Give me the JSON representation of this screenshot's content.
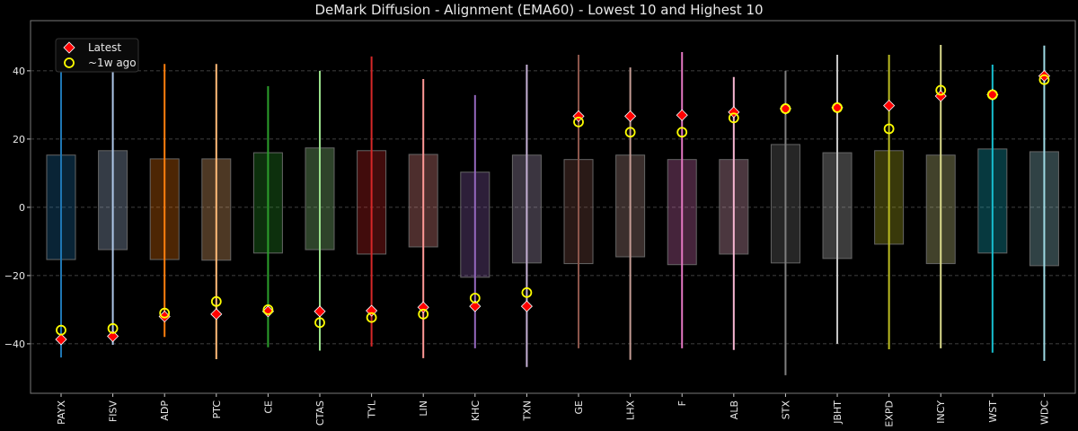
{
  "chart_data": {
    "type": "box-range",
    "title": "DeMark Diffusion - Alignment (EMA60) - Lowest 10 and Highest 10",
    "xlabel": "",
    "ylabel": "",
    "ylim": [
      -54.5,
      54.7
    ],
    "yticks": [
      -40,
      -20,
      0,
      20,
      40
    ],
    "grid": "horizontal dashed",
    "legend": {
      "placement": "top-left",
      "entries": [
        {
          "label": "Latest",
          "marker": "red-diamond",
          "color": "#ff0000"
        },
        {
          "label": "~1w ago",
          "marker": "yellow-open-circle",
          "color": "#ffff00"
        }
      ]
    },
    "categories": [
      "PAYX",
      "FISV",
      "ADP",
      "PTC",
      "CE",
      "CTAS",
      "TYL",
      "LIN",
      "KHC",
      "TXN",
      "GE",
      "LHX",
      "F",
      "ALB",
      "STX",
      "JBHT",
      "EXPD",
      "INCY",
      "WST",
      "WDC"
    ],
    "colors": [
      "#1f77b4",
      "#aec7e8",
      "#ff7f0e",
      "#ffbb78",
      "#2ca02c",
      "#98df8a",
      "#d62728",
      "#ff9896",
      "#9467bd",
      "#c5b0d5",
      "#8c564b",
      "#c49c94",
      "#e377c2",
      "#f7b6d2",
      "#7f7f7f",
      "#c7c7c7",
      "#bcbd22",
      "#dbdb8d",
      "#17becf",
      "#9edae5"
    ],
    "whisker_high": [
      44.7,
      40.5,
      42,
      42,
      35.5,
      40,
      44.2,
      37.6,
      32.9,
      41.8,
      44.7,
      41,
      45.5,
      38.2,
      40,
      44.7,
      44.7,
      47.6,
      41.8,
      47.4
    ],
    "whisker_low": [
      -44,
      -40.3,
      -38,
      -44.5,
      -41,
      -42,
      -40.8,
      -44.2,
      -41.3,
      -46.8,
      -41.3,
      -44.7,
      -41.3,
      -41.8,
      -49.2,
      -40,
      -41.6,
      -41.3,
      -42.6,
      -45
    ],
    "box_high": [
      15.3,
      16.6,
      14.2,
      14.2,
      16,
      17.4,
      16.6,
      15.5,
      10.3,
      15.3,
      14,
      15.3,
      14,
      14,
      18.4,
      16,
      16.6,
      15.3,
      17.1,
      16.3
    ],
    "box_low": [
      -15.3,
      -12.4,
      -15.3,
      -15.5,
      -13.4,
      -12.4,
      -13.7,
      -11.6,
      -20.5,
      -16.3,
      -16.5,
      -14.5,
      -16.8,
      -13.7,
      -16.3,
      -15,
      -10.8,
      -16.5,
      -13.4,
      -17.1
    ],
    "series": [
      {
        "name": "Latest",
        "values": [
          -38.7,
          -37.8,
          -32,
          -31.3,
          -30.5,
          -30.5,
          -30.3,
          -29.3,
          -29,
          -29,
          26.7,
          26.7,
          27,
          27.9,
          28.9,
          29.2,
          29.8,
          32.6,
          33,
          38.5
        ]
      },
      {
        "name": "~1w ago",
        "values": [
          -36,
          -35.5,
          -31,
          -27.6,
          -30,
          -33.8,
          -32.3,
          -31.3,
          -26.6,
          -25,
          25,
          22,
          22,
          26.2,
          28.9,
          29.2,
          23,
          34.3,
          33,
          37.4
        ]
      }
    ]
  }
}
